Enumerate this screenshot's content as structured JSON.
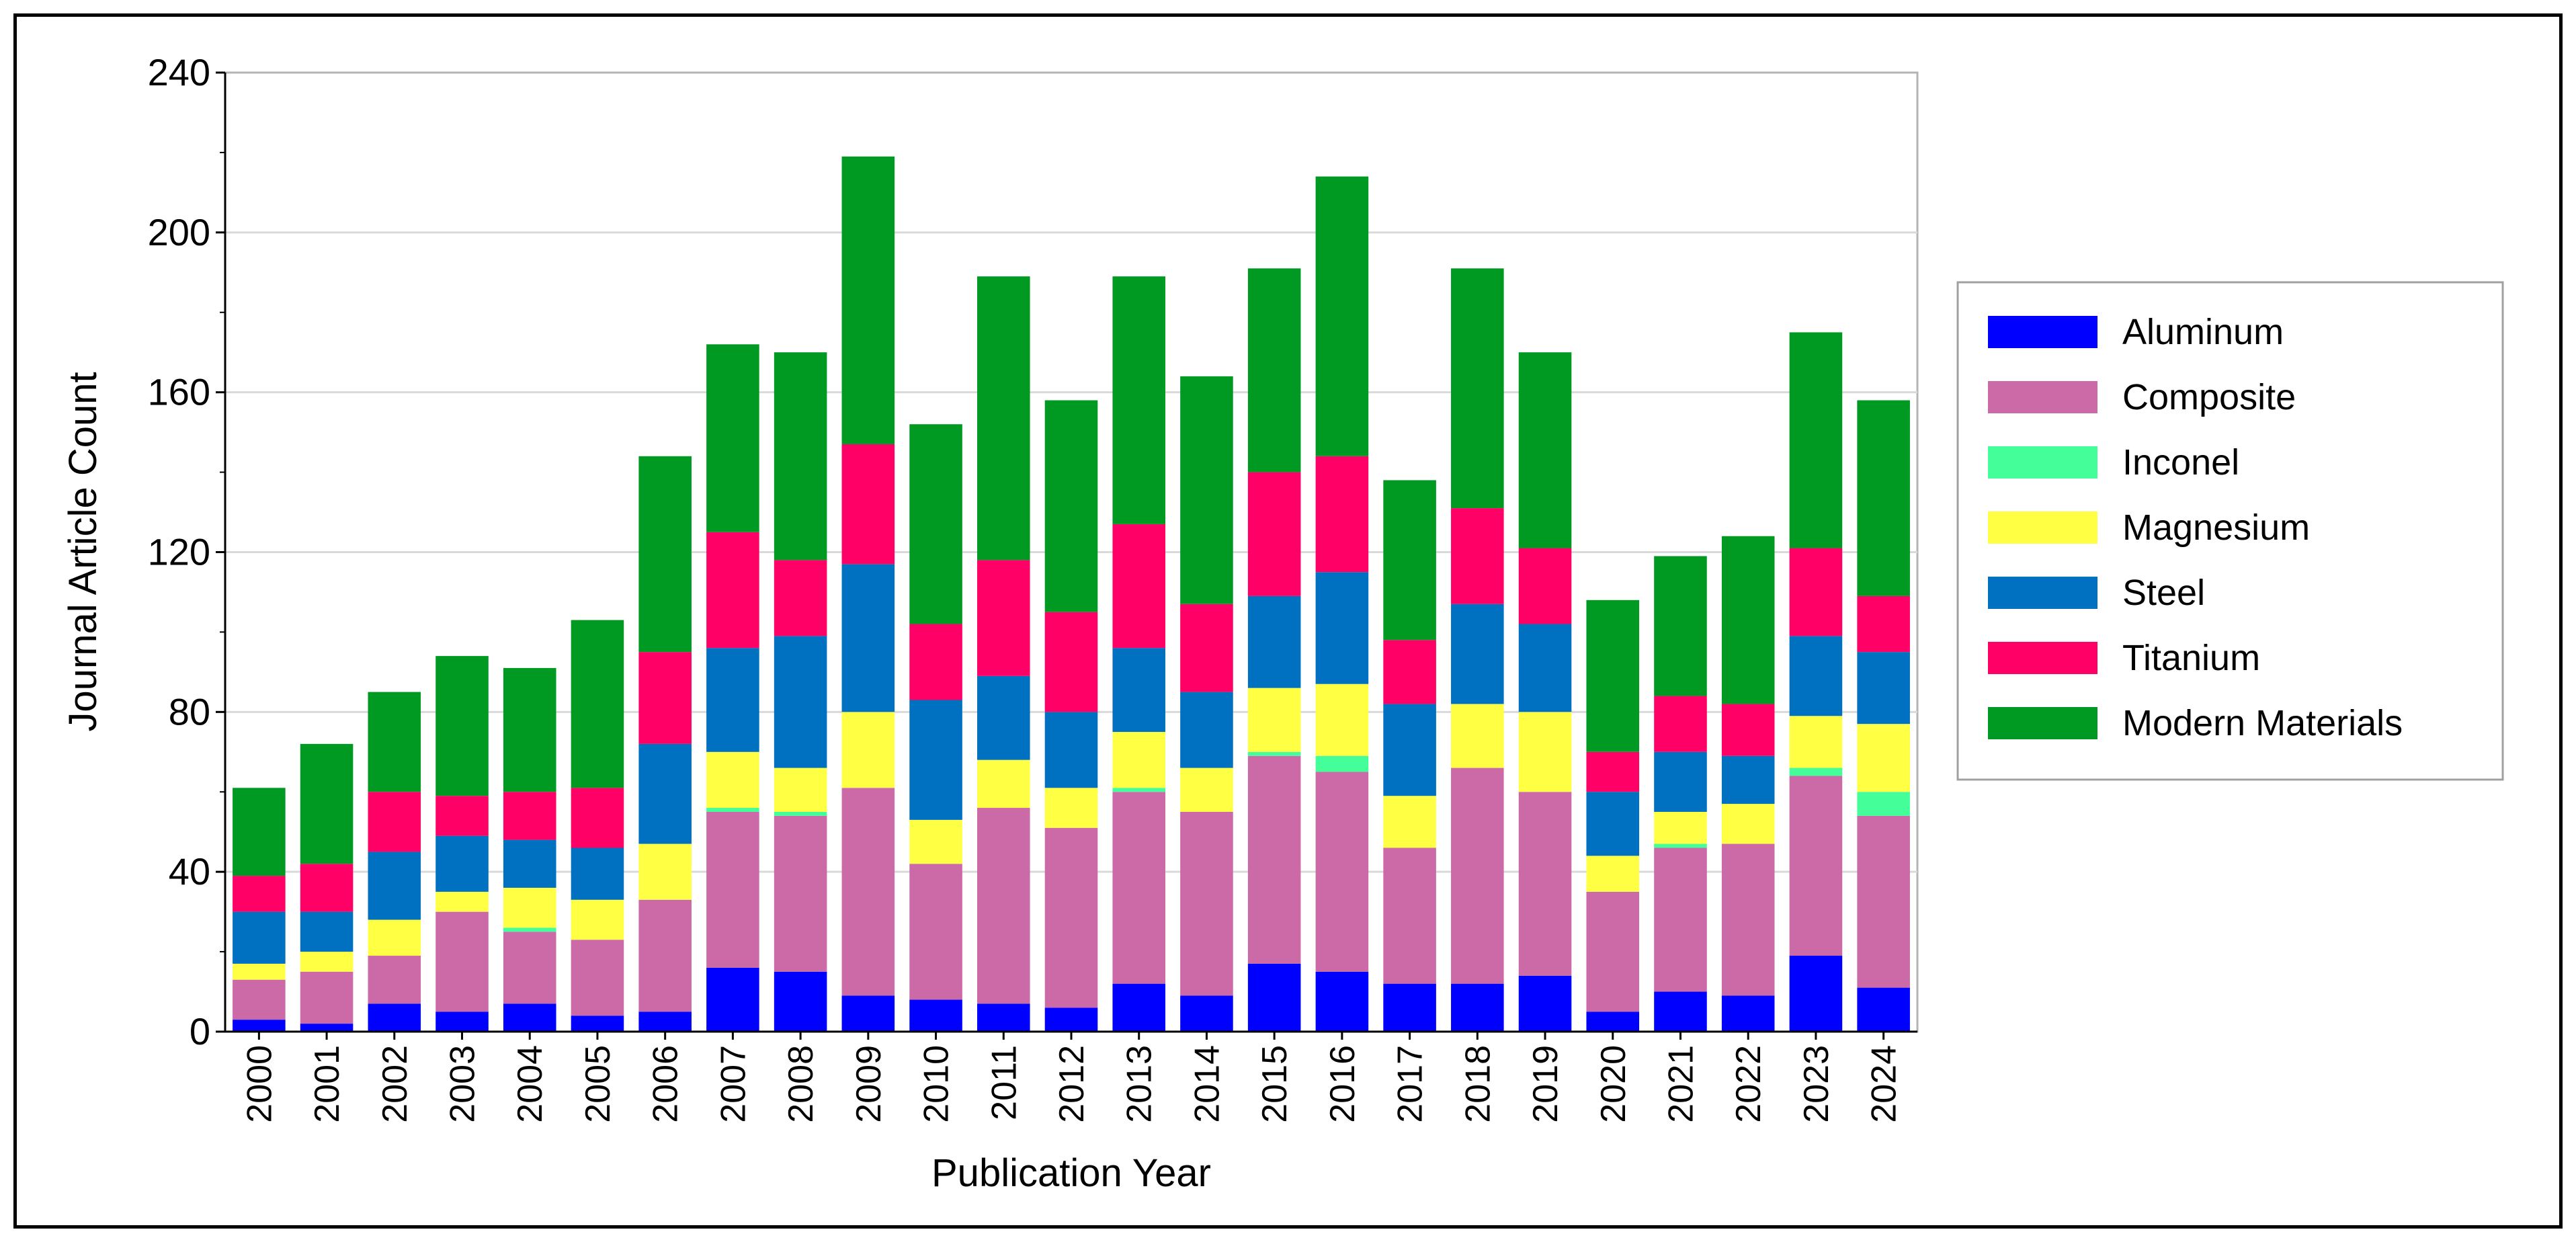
{
  "chart_data": {
    "type": "bar",
    "stacked": true,
    "title": "",
    "xlabel": "Publication Year",
    "ylabel": "Journal Article Count",
    "ylim": [
      0,
      240
    ],
    "yticks": [
      0,
      40,
      80,
      120,
      160,
      200,
      240
    ],
    "grid": true,
    "legend_position": "right",
    "categories": [
      "2000",
      "2001",
      "2002",
      "2003",
      "2004",
      "2005",
      "2006",
      "2007",
      "2008",
      "2009",
      "2010",
      "2011",
      "2012",
      "2013",
      "2014",
      "2015",
      "2016",
      "2017",
      "2018",
      "2019",
      "2020",
      "2021",
      "2022",
      "2023",
      "2024"
    ],
    "series": [
      {
        "name": "Aluminum",
        "color": "#0000FF",
        "values": [
          3,
          2,
          7,
          5,
          7,
          4,
          5,
          16,
          15,
          9,
          8,
          7,
          6,
          12,
          9,
          17,
          15,
          12,
          12,
          14,
          5,
          10,
          9,
          19,
          11
        ]
      },
      {
        "name": "Composite",
        "color": "#CC6AA8",
        "values": [
          10,
          13,
          12,
          25,
          18,
          19,
          28,
          39,
          39,
          52,
          34,
          49,
          45,
          48,
          46,
          52,
          50,
          34,
          54,
          46,
          30,
          36,
          38,
          45,
          43
        ]
      },
      {
        "name": "Inconel",
        "color": "#44FF99",
        "values": [
          0,
          0,
          0,
          0,
          1,
          0,
          0,
          1,
          1,
          0,
          0,
          0,
          0,
          1,
          0,
          1,
          4,
          0,
          0,
          0,
          0,
          1,
          0,
          2,
          6
        ]
      },
      {
        "name": "Magnesium",
        "color": "#FFFF44",
        "values": [
          4,
          5,
          9,
          5,
          10,
          10,
          14,
          14,
          11,
          19,
          11,
          12,
          10,
          14,
          11,
          16,
          18,
          13,
          16,
          20,
          9,
          8,
          10,
          13,
          17
        ]
      },
      {
        "name": "Steel",
        "color": "#0070C0",
        "values": [
          13,
          10,
          17,
          14,
          12,
          13,
          25,
          26,
          33,
          37,
          30,
          21,
          19,
          21,
          19,
          23,
          28,
          23,
          25,
          22,
          16,
          15,
          12,
          20,
          18
        ]
      },
      {
        "name": "Titanium",
        "color": "#FF0066",
        "values": [
          9,
          12,
          15,
          10,
          12,
          15,
          23,
          29,
          19,
          30,
          19,
          29,
          25,
          31,
          22,
          31,
          29,
          16,
          24,
          19,
          10,
          14,
          13,
          22,
          14
        ]
      },
      {
        "name": "Modern Materials",
        "color": "#009922",
        "values": [
          22,
          30,
          25,
          35,
          31,
          42,
          49,
          47,
          52,
          72,
          50,
          71,
          53,
          62,
          57,
          51,
          70,
          40,
          60,
          49,
          38,
          35,
          42,
          54,
          49
        ]
      }
    ]
  }
}
